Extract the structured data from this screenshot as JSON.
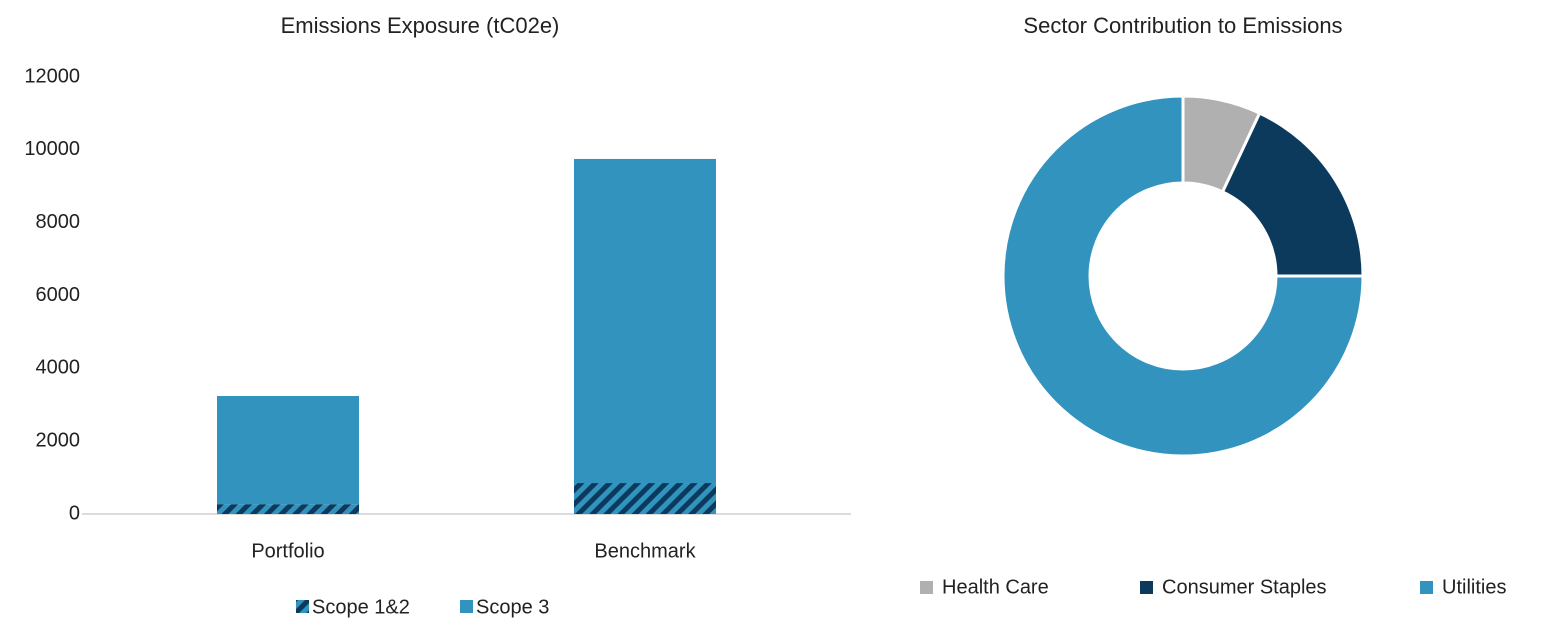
{
  "chart_data": [
    {
      "type": "bar",
      "title": "Emissions Exposure (tC02e)",
      "stacked": true,
      "categories": [
        "Portfolio",
        "Benchmark"
      ],
      "series": [
        {
          "name": "Scope 1&2",
          "color": "#0b3a5c",
          "pattern": "hatch",
          "hatch_color": "#3294be",
          "values": [
            270,
            850
          ]
        },
        {
          "name": "Scope 3",
          "color": "#3294be",
          "values": [
            2970,
            8900
          ]
        }
      ],
      "ylim": [
        0,
        12000
      ],
      "yticks": [
        0,
        2000,
        4000,
        6000,
        8000,
        10000,
        12000
      ],
      "grid": false,
      "legend": "bottom"
    },
    {
      "type": "donut",
      "title": "Sector Contribution to Emissions",
      "categories": [
        "Health Care",
        "Consumer Staples",
        "Utilities"
      ],
      "values": [
        7,
        18,
        75
      ],
      "colors": [
        "#b0b0b0",
        "#0b3a5c",
        "#3294be"
      ],
      "legend": "bottom"
    }
  ]
}
